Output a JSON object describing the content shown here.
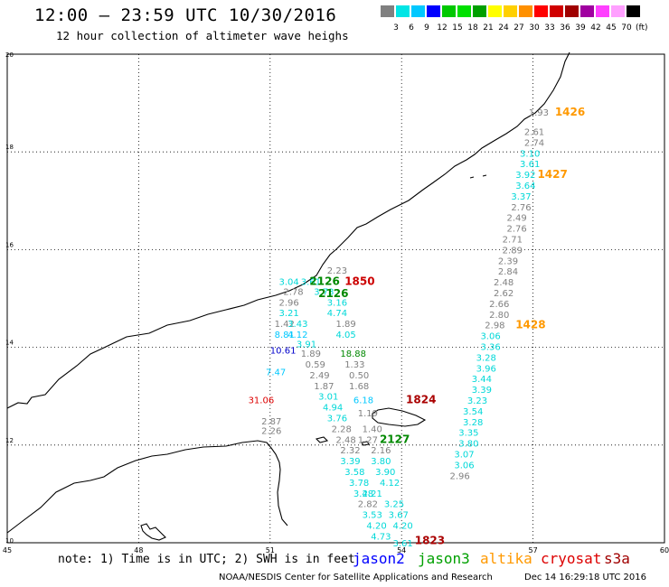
{
  "title": "12:00 – 23:59 UTC 10/30/2016",
  "subtitle": "12 hour collection of altimeter wave heighs",
  "legend": {
    "colors": [
      "#808080",
      "#00e5e5",
      "#00c8ff",
      "#0000ff",
      "#00c800",
      "#00e000",
      "#00a000",
      "#ffff00",
      "#ffd000",
      "#ff9000",
      "#ff0000",
      "#d00000",
      "#a00000",
      "#a000a0",
      "#ff40ff",
      "#ffa0ff",
      "#000000"
    ],
    "labels": [
      "3",
      "6",
      "9",
      "12",
      "15",
      "18",
      "21",
      "24",
      "27",
      "30",
      "33",
      "36",
      "39",
      "42",
      "45",
      "70"
    ],
    "unit": "(ft)"
  },
  "axes": {
    "x_ticks": [
      "45",
      "48",
      "51",
      "54",
      "57",
      "60"
    ],
    "y_ticks": [
      "20",
      "18",
      "16",
      "14",
      "12",
      "10"
    ],
    "x_range": [
      45,
      60
    ],
    "y_range": [
      10,
      20
    ]
  },
  "map_points": [
    {
      "lon": 56.9,
      "lat": 18.82,
      "text": "1.93",
      "color": "#808080"
    },
    {
      "lon": 57.5,
      "lat": 18.82,
      "text": "1426",
      "color": "#ff9900",
      "bold": true
    },
    {
      "lon": 56.8,
      "lat": 18.42,
      "text": "2.61",
      "color": "#808080"
    },
    {
      "lon": 56.8,
      "lat": 18.2,
      "text": "2.74",
      "color": "#808080"
    },
    {
      "lon": 56.7,
      "lat": 17.98,
      "text": "3.10",
      "color": "#00d8d8"
    },
    {
      "lon": 56.7,
      "lat": 17.76,
      "text": "3.61",
      "color": "#00d8d8"
    },
    {
      "lon": 56.6,
      "lat": 17.54,
      "text": "3.92",
      "color": "#00d8d8"
    },
    {
      "lon": 57.1,
      "lat": 17.54,
      "text": "1427",
      "color": "#ff9900",
      "bold": true
    },
    {
      "lon": 56.6,
      "lat": 17.32,
      "text": "3.64",
      "color": "#00d8d8"
    },
    {
      "lon": 56.5,
      "lat": 17.1,
      "text": "3.37",
      "color": "#00d8d8"
    },
    {
      "lon": 56.5,
      "lat": 16.88,
      "text": "2.76",
      "color": "#808080"
    },
    {
      "lon": 56.4,
      "lat": 16.66,
      "text": "2.49",
      "color": "#808080"
    },
    {
      "lon": 56.4,
      "lat": 16.44,
      "text": "2.76",
      "color": "#808080"
    },
    {
      "lon": 56.3,
      "lat": 16.22,
      "text": "2.71",
      "color": "#808080"
    },
    {
      "lon": 56.3,
      "lat": 16.0,
      "text": "2.89",
      "color": "#808080"
    },
    {
      "lon": 56.2,
      "lat": 15.78,
      "text": "2.39",
      "color": "#808080"
    },
    {
      "lon": 56.2,
      "lat": 15.56,
      "text": "2.84",
      "color": "#808080"
    },
    {
      "lon": 56.1,
      "lat": 15.34,
      "text": "2.48",
      "color": "#808080"
    },
    {
      "lon": 56.1,
      "lat": 15.12,
      "text": "2.62",
      "color": "#808080"
    },
    {
      "lon": 56.0,
      "lat": 14.9,
      "text": "2.66",
      "color": "#808080"
    },
    {
      "lon": 56.0,
      "lat": 14.68,
      "text": "2.80",
      "color": "#808080"
    },
    {
      "lon": 55.9,
      "lat": 14.46,
      "text": "2.98",
      "color": "#808080"
    },
    {
      "lon": 56.6,
      "lat": 14.46,
      "text": "1428",
      "color": "#ff9900",
      "bold": true
    },
    {
      "lon": 55.8,
      "lat": 14.24,
      "text": "3.06",
      "color": "#00d8d8"
    },
    {
      "lon": 55.8,
      "lat": 14.02,
      "text": "3.36",
      "color": "#00d8d8"
    },
    {
      "lon": 55.7,
      "lat": 13.8,
      "text": "3.28",
      "color": "#00d8d8"
    },
    {
      "lon": 55.7,
      "lat": 13.58,
      "text": "3.96",
      "color": "#00d8d8"
    },
    {
      "lon": 55.6,
      "lat": 13.36,
      "text": "3.44",
      "color": "#00d8d8"
    },
    {
      "lon": 55.6,
      "lat": 13.14,
      "text": "3.39",
      "color": "#00d8d8"
    },
    {
      "lon": 55.5,
      "lat": 12.92,
      "text": "3.23",
      "color": "#00d8d8"
    },
    {
      "lon": 55.4,
      "lat": 12.7,
      "text": "3.54",
      "color": "#00d8d8"
    },
    {
      "lon": 55.4,
      "lat": 12.48,
      "text": "3.28",
      "color": "#00d8d8"
    },
    {
      "lon": 55.3,
      "lat": 12.26,
      "text": "3.35",
      "color": "#00d8d8"
    },
    {
      "lon": 55.3,
      "lat": 12.04,
      "text": "3.80",
      "color": "#00d8d8"
    },
    {
      "lon": 55.2,
      "lat": 11.82,
      "text": "3.07",
      "color": "#00d8d8"
    },
    {
      "lon": 55.2,
      "lat": 11.6,
      "text": "3.06",
      "color": "#00d8d8"
    },
    {
      "lon": 55.1,
      "lat": 11.38,
      "text": "2.96",
      "color": "#808080"
    },
    {
      "lon": 52.3,
      "lat": 15.58,
      "text": "2.23",
      "color": "#808080"
    },
    {
      "lon": 52.7,
      "lat": 15.35,
      "text": "1850",
      "color": "#cc0000",
      "bold": true
    },
    {
      "lon": 51.2,
      "lat": 15.35,
      "text": "3.04",
      "color": "#00d8d8"
    },
    {
      "lon": 51.7,
      "lat": 15.35,
      "text": "3.61",
      "color": "#00d8d8"
    },
    {
      "lon": 51.9,
      "lat": 15.35,
      "text": "2126",
      "color": "#008800",
      "bold": true
    },
    {
      "lon": 51.3,
      "lat": 15.15,
      "text": "2.78",
      "color": "#808080"
    },
    {
      "lon": 52.0,
      "lat": 15.15,
      "text": "3.73",
      "color": "#00d8d8"
    },
    {
      "lon": 52.1,
      "lat": 15.1,
      "text": "2126",
      "color": "#008800",
      "bold": true
    },
    {
      "lon": 51.2,
      "lat": 14.93,
      "text": "2.96",
      "color": "#808080"
    },
    {
      "lon": 52.3,
      "lat": 14.93,
      "text": "3.16",
      "color": "#00d8d8"
    },
    {
      "lon": 51.2,
      "lat": 14.71,
      "text": "3.21",
      "color": "#00d8d8"
    },
    {
      "lon": 52.3,
      "lat": 14.71,
      "text": "4.74",
      "color": "#00d8d8"
    },
    {
      "lon": 51.1,
      "lat": 14.49,
      "text": "1.42",
      "color": "#808080"
    },
    {
      "lon": 51.4,
      "lat": 14.49,
      "text": "3.43",
      "color": "#00d8d8"
    },
    {
      "lon": 52.5,
      "lat": 14.49,
      "text": "1.89",
      "color": "#808080"
    },
    {
      "lon": 51.1,
      "lat": 14.27,
      "text": "8.81",
      "color": "#00c8ff"
    },
    {
      "lon": 51.4,
      "lat": 14.27,
      "text": "4.12",
      "color": "#00c8ff"
    },
    {
      "lon": 52.5,
      "lat": 14.27,
      "text": "4.05",
      "color": "#00d8d8"
    },
    {
      "lon": 51.6,
      "lat": 14.08,
      "text": "3.91",
      "color": "#00d8d8"
    },
    {
      "lon": 51.0,
      "lat": 13.95,
      "text": "10.61",
      "color": "#0000cc"
    },
    {
      "lon": 51.7,
      "lat": 13.88,
      "text": "1.89",
      "color": "#808080"
    },
    {
      "lon": 52.6,
      "lat": 13.88,
      "text": "18.88",
      "color": "#008800"
    },
    {
      "lon": 51.8,
      "lat": 13.66,
      "text": "0.59",
      "color": "#808080"
    },
    {
      "lon": 52.7,
      "lat": 13.66,
      "text": "1.33",
      "color": "#808080"
    },
    {
      "lon": 50.9,
      "lat": 13.5,
      "text": "7.47",
      "color": "#00c8ff"
    },
    {
      "lon": 51.9,
      "lat": 13.44,
      "text": "2.49",
      "color": "#808080"
    },
    {
      "lon": 52.8,
      "lat": 13.44,
      "text": "0.50",
      "color": "#808080"
    },
    {
      "lon": 52.0,
      "lat": 13.22,
      "text": "1.87",
      "color": "#808080"
    },
    {
      "lon": 52.8,
      "lat": 13.22,
      "text": "1.68",
      "color": "#808080"
    },
    {
      "lon": 52.1,
      "lat": 13.0,
      "text": "3.01",
      "color": "#00d8d8"
    },
    {
      "lon": 50.5,
      "lat": 12.93,
      "text": "31.06",
      "color": "#dd0000"
    },
    {
      "lon": 52.9,
      "lat": 12.93,
      "text": "6.18",
      "color": "#00c8ff"
    },
    {
      "lon": 54.1,
      "lat": 12.93,
      "text": "1824",
      "color": "#aa0000",
      "bold": true
    },
    {
      "lon": 52.2,
      "lat": 12.78,
      "text": "4.94",
      "color": "#00d8d8"
    },
    {
      "lon": 52.3,
      "lat": 12.56,
      "text": "3.76",
      "color": "#00d8d8"
    },
    {
      "lon": 53.0,
      "lat": 12.66,
      "text": "1.19",
      "color": "#808080"
    },
    {
      "lon": 50.8,
      "lat": 12.5,
      "text": "2.87",
      "color": "#808080"
    },
    {
      "lon": 52.4,
      "lat": 12.34,
      "text": "2.28",
      "color": "#808080"
    },
    {
      "lon": 53.1,
      "lat": 12.34,
      "text": "1.40",
      "color": "#808080"
    },
    {
      "lon": 50.8,
      "lat": 12.3,
      "text": "2.26",
      "color": "#808080"
    },
    {
      "lon": 52.5,
      "lat": 12.12,
      "text": "2.48",
      "color": "#808080"
    },
    {
      "lon": 53.0,
      "lat": 12.12,
      "text": "1.27",
      "color": "#808080"
    },
    {
      "lon": 53.5,
      "lat": 12.12,
      "text": "2127",
      "color": "#008800",
      "bold": true
    },
    {
      "lon": 52.6,
      "lat": 11.9,
      "text": "2.32",
      "color": "#808080"
    },
    {
      "lon": 53.3,
      "lat": 11.9,
      "text": "2.16",
      "color": "#808080"
    },
    {
      "lon": 52.6,
      "lat": 11.68,
      "text": "3.39",
      "color": "#00d8d8"
    },
    {
      "lon": 53.3,
      "lat": 11.68,
      "text": "3.80",
      "color": "#00d8d8"
    },
    {
      "lon": 52.7,
      "lat": 11.46,
      "text": "3.58",
      "color": "#00d8d8"
    },
    {
      "lon": 53.4,
      "lat": 11.46,
      "text": "3.90",
      "color": "#00d8d8"
    },
    {
      "lon": 52.8,
      "lat": 11.24,
      "text": "3.78",
      "color": "#00d8d8"
    },
    {
      "lon": 53.5,
      "lat": 11.24,
      "text": "4.12",
      "color": "#00d8d8"
    },
    {
      "lon": 52.9,
      "lat": 11.02,
      "text": "3.48",
      "color": "#00d8d8"
    },
    {
      "lon": 53.1,
      "lat": 11.02,
      "text": "2.21",
      "color": "#00d8d8"
    },
    {
      "lon": 53.0,
      "lat": 10.8,
      "text": "2.82",
      "color": "#808080"
    },
    {
      "lon": 53.6,
      "lat": 10.8,
      "text": "3.25",
      "color": "#00d8d8"
    },
    {
      "lon": 53.1,
      "lat": 10.58,
      "text": "3.53",
      "color": "#00d8d8"
    },
    {
      "lon": 53.7,
      "lat": 10.58,
      "text": "3.67",
      "color": "#00d8d8"
    },
    {
      "lon": 53.2,
      "lat": 10.36,
      "text": "4.20",
      "color": "#00d8d8"
    },
    {
      "lon": 53.8,
      "lat": 10.36,
      "text": "4.20",
      "color": "#00d8d8"
    },
    {
      "lon": 53.3,
      "lat": 10.14,
      "text": "4.73",
      "color": "#00d8d8"
    },
    {
      "lon": 53.8,
      "lat": 10.0,
      "text": "3.61",
      "color": "#00d8d8"
    },
    {
      "lon": 54.3,
      "lat": 10.05,
      "text": "1823",
      "color": "#aa0000",
      "bold": true
    }
  ],
  "note": "note: 1) Time is in UTC; 2) SWH is in feet",
  "satellites": [
    {
      "name": "jason2",
      "color": "#0000ff"
    },
    {
      "name": "jason3",
      "color": "#00a000"
    },
    {
      "name": "altika",
      "color": "#ff9900"
    },
    {
      "name": "cryosat",
      "color": "#dd0000"
    },
    {
      "name": "s3a",
      "color": "#a00000"
    }
  ],
  "credit": "NOAA/NESDIS Center for Satellite Applications and Research",
  "timestamp": "Dec 14 16:29:18 UTC 2016"
}
